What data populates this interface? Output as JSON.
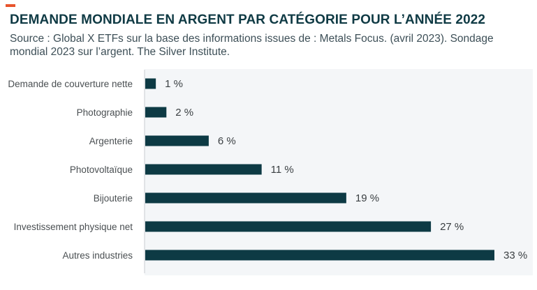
{
  "header": {
    "title": "DEMANDE MONDIALE EN ARGENT PAR CATÉGORIE POUR L’ANNÉE 2022",
    "subtitle": "Source : Global X ETFs sur la base des informations issues de : Metals Focus. (avril 2023). Sondage mondial 2023 sur l’argent. The Silver Institute."
  },
  "colors": {
    "bar": "#0d3a44",
    "accent": "#e8542c",
    "title": "#0f3a44",
    "plot_background": "#f4f6f8"
  },
  "chart_data": {
    "type": "bar",
    "orientation": "horizontal",
    "title": "DEMANDE MONDIALE EN ARGENT PAR CATÉGORIE POUR L’ANNÉE 2022",
    "xlabel": "",
    "ylabel": "",
    "xlim": [
      0,
      33
    ],
    "unit": "%",
    "categories": [
      "Demande de couverture nette",
      "Photographie",
      "Argenterie",
      "Photovoltaïque",
      "Bijouterie",
      "Investissement physique net",
      "Autres industries"
    ],
    "values": [
      1,
      2,
      6,
      11,
      19,
      27,
      33
    ],
    "value_labels": [
      "1 %",
      "2 %",
      "6 %",
      "11 %",
      "19 %",
      "27 %",
      "33 %"
    ],
    "grid": false,
    "legend": "none"
  }
}
